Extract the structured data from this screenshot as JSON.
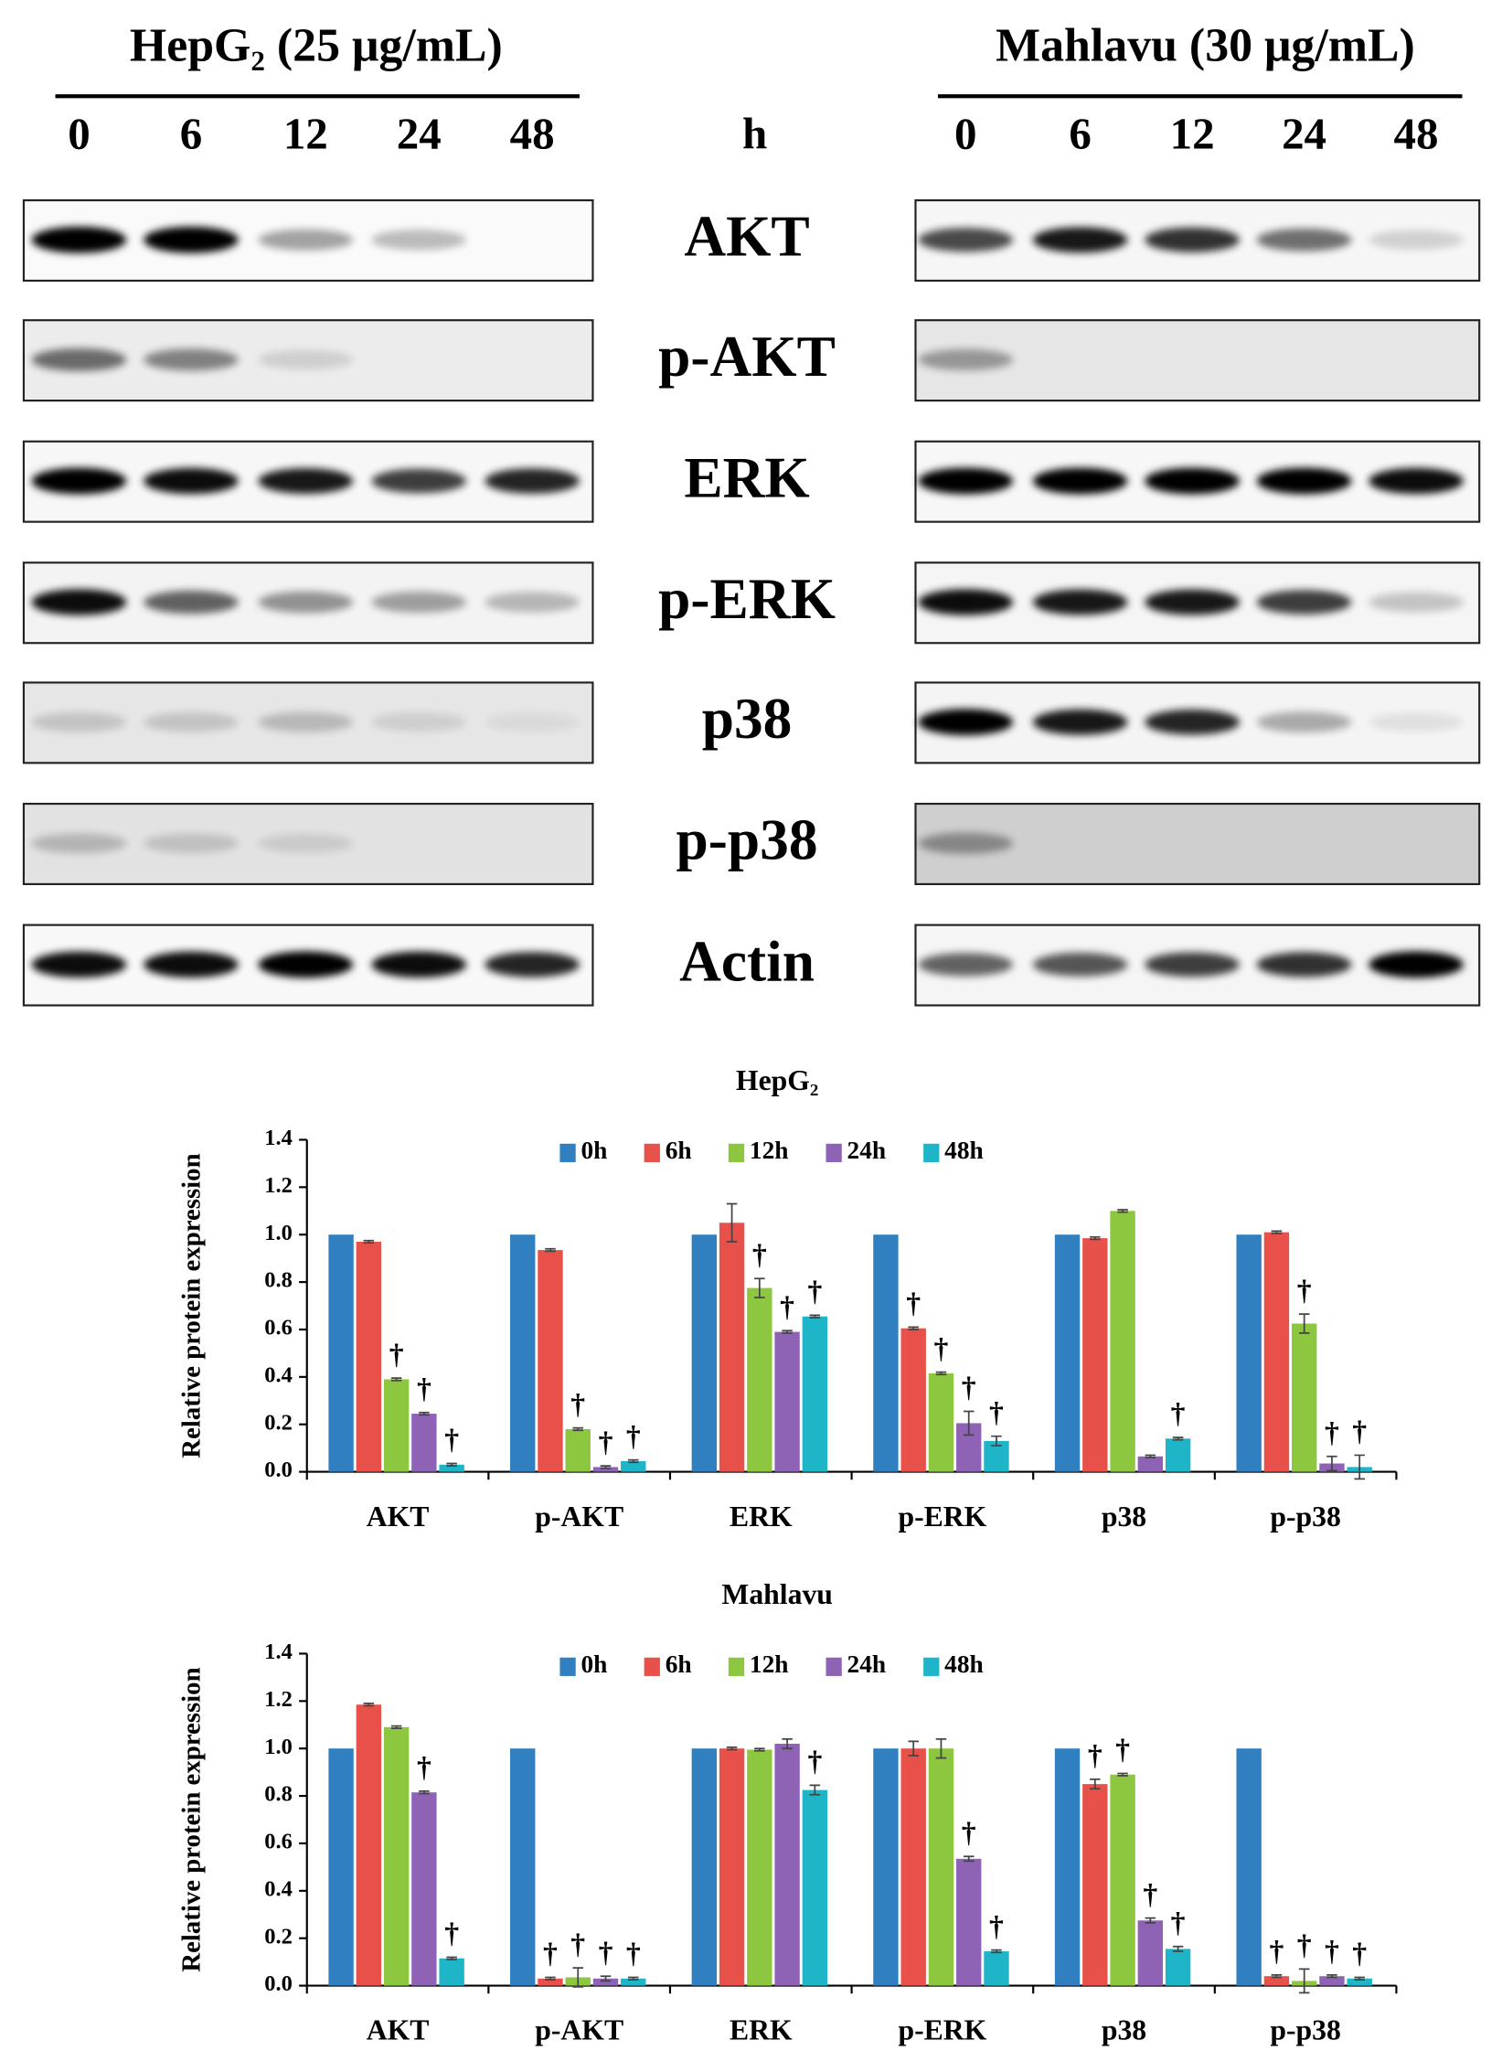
{
  "blots": {
    "unit": "h",
    "panels": [
      {
        "title": "HepG₂ (25 μg/mL)",
        "lanes": [
          "0",
          "6",
          "12",
          "24",
          "48"
        ]
      },
      {
        "title": "Mahlavu (30 μg/mL)",
        "lanes": [
          "0",
          "6",
          "12",
          "24",
          "48"
        ]
      }
    ],
    "proteins": [
      "AKT",
      "p-AKT",
      "ERK",
      "p-ERK",
      "p38",
      "p-p38",
      "Actin"
    ]
  },
  "chart_data": [
    {
      "type": "bar",
      "title": "HepG₂",
      "ylabel": "Relative protein expression",
      "legend": "top",
      "categories": [
        "AKT",
        "p-AKT",
        "ERK",
        "p-ERK",
        "p38",
        "p-p38"
      ],
      "ylim": [
        0,
        1.4
      ],
      "yticks": [
        {
          "value": 0,
          "label": "0.0"
        },
        {
          "value": 0.2,
          "label": "0.2"
        },
        {
          "value": 0.4,
          "label": "0.4"
        },
        {
          "value": 0.6,
          "label": "0.6"
        },
        {
          "value": 0.8,
          "label": "0.8"
        },
        {
          "value": 1,
          "label": "1.0"
        },
        {
          "value": 1.2,
          "label": "1.2"
        },
        {
          "value": 1.4,
          "label": "1.4"
        }
      ],
      "series": [
        {
          "name": "0h",
          "color": "#2f7fc1",
          "values": [
            1.0,
            1.0,
            1.0,
            1.0,
            1.0,
            1.0
          ],
          "errors": [
            0,
            0,
            0,
            0,
            0,
            0
          ],
          "annotations": [
            null,
            null,
            null,
            null,
            null,
            null
          ]
        },
        {
          "name": "6h",
          "color": "#e8514a",
          "values": [
            0.97,
            0.935,
            1.05,
            0.605,
            0.985,
            1.01
          ],
          "errors": [
            0.005,
            0.005,
            0.08,
            0.005,
            0.005,
            0.005
          ],
          "annotations": [
            null,
            null,
            null,
            "†",
            null,
            null
          ]
        },
        {
          "name": "12h",
          "color": "#8dc63f",
          "values": [
            0.39,
            0.18,
            0.775,
            0.415,
            1.1,
            0.625
          ],
          "errors": [
            0.005,
            0.005,
            0.04,
            0.005,
            0.005,
            0.04
          ],
          "annotations": [
            "†",
            "†",
            "†",
            "†",
            null,
            "†"
          ]
        },
        {
          "name": "24h",
          "color": "#8e63b5",
          "values": [
            0.245,
            0.02,
            0.59,
            0.205,
            0.065,
            0.035
          ],
          "errors": [
            0.005,
            0.005,
            0.005,
            0.05,
            0.005,
            0.03
          ],
          "annotations": [
            "†",
            "†",
            "†",
            "†",
            null,
            "†"
          ]
        },
        {
          "name": "48h",
          "color": "#1fb5c9",
          "values": [
            0.03,
            0.045,
            0.655,
            0.13,
            0.14,
            0.02
          ],
          "errors": [
            0.005,
            0.005,
            0.005,
            0.02,
            0.005,
            0.05
          ],
          "annotations": [
            "†",
            "†",
            "†",
            "†",
            "†",
            "†"
          ]
        }
      ]
    },
    {
      "type": "bar",
      "title": "Mahlavu",
      "ylabel": "Relative protein expression",
      "legend": "top",
      "categories": [
        "AKT",
        "p-AKT",
        "ERK",
        "p-ERK",
        "p38",
        "p-p38"
      ],
      "ylim": [
        0,
        1.4
      ],
      "yticks": [
        {
          "value": 0,
          "label": "0.0"
        },
        {
          "value": 0.2,
          "label": "0.2"
        },
        {
          "value": 0.4,
          "label": "0.4"
        },
        {
          "value": 0.6,
          "label": "0.6"
        },
        {
          "value": 0.8,
          "label": "0.8"
        },
        {
          "value": 1,
          "label": "1.0"
        },
        {
          "value": 1.2,
          "label": "1.2"
        },
        {
          "value": 1.4,
          "label": "1.4"
        }
      ],
      "series": [
        {
          "name": "0h",
          "color": "#2f7fc1",
          "values": [
            1.0,
            1.0,
            1.0,
            1.0,
            1.0,
            1.0
          ],
          "errors": [
            0,
            0,
            0,
            0,
            0,
            0
          ],
          "annotations": [
            null,
            null,
            null,
            null,
            null,
            null
          ]
        },
        {
          "name": "6h",
          "color": "#e8514a",
          "values": [
            1.185,
            0.03,
            1.0,
            1.0,
            0.85,
            0.04
          ],
          "errors": [
            0.005,
            0.005,
            0.005,
            0.03,
            0.02,
            0.005
          ],
          "annotations": [
            null,
            "†",
            null,
            null,
            "†",
            "†"
          ]
        },
        {
          "name": "12h",
          "color": "#8dc63f",
          "values": [
            1.09,
            0.035,
            0.995,
            1.0,
            0.89,
            0.02
          ],
          "errors": [
            0.005,
            0.04,
            0.005,
            0.04,
            0.005,
            0.05
          ],
          "annotations": [
            null,
            "†",
            null,
            null,
            "†",
            "†"
          ]
        },
        {
          "name": "24h",
          "color": "#8e63b5",
          "values": [
            0.815,
            0.03,
            1.02,
            0.535,
            0.275,
            0.04
          ],
          "errors": [
            0.005,
            0.01,
            0.02,
            0.01,
            0.01,
            0.005
          ],
          "annotations": [
            "†",
            "†",
            null,
            "†",
            "†",
            "†"
          ]
        },
        {
          "name": "48h",
          "color": "#1fb5c9",
          "values": [
            0.115,
            0.03,
            0.825,
            0.145,
            0.155,
            0.03
          ],
          "errors": [
            0.005,
            0.005,
            0.02,
            0.005,
            0.01,
            0.005
          ],
          "annotations": [
            "†",
            "†",
            "†",
            "†",
            "†",
            "†"
          ]
        }
      ]
    }
  ]
}
